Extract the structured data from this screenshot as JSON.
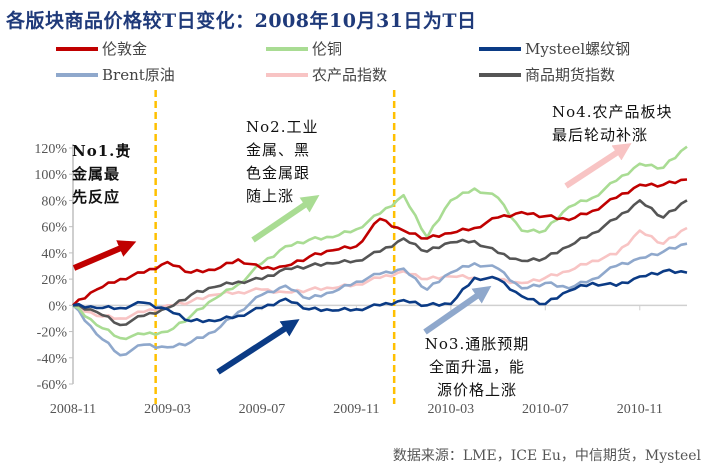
{
  "chart_data": {
    "type": "line",
    "title": "各版块商品价格较T日变化：2008年10月31日为T日",
    "xlabel": "",
    "ylabel": "",
    "x_unit": "months since 2008-11",
    "x": [
      0,
      1,
      2,
      3,
      4,
      5,
      6,
      7,
      8,
      9,
      10,
      11,
      12,
      13,
      14,
      15,
      16,
      17,
      18,
      19,
      20,
      21,
      22,
      23,
      24,
      25,
      26
    ],
    "x_ticks": [
      {
        "value": 0,
        "label": "2008-11"
      },
      {
        "value": 4,
        "label": "2009-03"
      },
      {
        "value": 8,
        "label": "2009-07"
      },
      {
        "value": 12,
        "label": "2009-11"
      },
      {
        "value": 16,
        "label": "2010-03"
      },
      {
        "value": 20,
        "label": "2010-07"
      },
      {
        "value": 24,
        "label": "2010-11"
      }
    ],
    "xlim": [
      0,
      26
    ],
    "ylim": [
      -60,
      120
    ],
    "y_ticks": [
      {
        "value": 120,
        "label": "120%"
      },
      {
        "value": 100,
        "label": "100%"
      },
      {
        "value": 80,
        "label": "80%"
      },
      {
        "value": 60,
        "label": "60%"
      },
      {
        "value": 40,
        "label": "40%"
      },
      {
        "value": 20,
        "label": "20%"
      },
      {
        "value": 0,
        "label": "0%"
      },
      {
        "value": -20,
        "label": "-20%"
      },
      {
        "value": -40,
        "label": "-40%"
      },
      {
        "value": -60,
        "label": "-60%"
      }
    ],
    "grid": false,
    "legend_position": "top",
    "series": [
      {
        "name": "伦敦金",
        "color": "#c00000",
        "values": [
          0,
          12,
          20,
          25,
          33,
          25,
          27,
          35,
          28,
          30,
          37,
          42,
          45,
          66,
          57,
          51,
          55,
          59,
          67,
          71,
          68,
          65,
          72,
          82,
          92,
          92,
          96
        ]
      },
      {
        "name": "伦铜",
        "color": "#a9dc93",
        "values": [
          0,
          -15,
          -25,
          -22,
          -20,
          -8,
          5,
          16,
          32,
          45,
          50,
          52,
          58,
          70,
          84,
          52,
          80,
          89,
          82,
          57,
          57,
          75,
          82,
          95,
          108,
          105,
          121
        ]
      },
      {
        "name": "Mysteel螺纹钢",
        "color": "#0b3b85",
        "values": [
          0,
          -2,
          -2,
          2,
          -3,
          -12,
          -12,
          -8,
          -2,
          5,
          -3,
          -4,
          -3,
          0,
          4,
          0,
          1,
          21,
          20,
          7,
          1,
          11,
          17,
          15,
          22,
          26,
          25
        ]
      },
      {
        "name": "Brent原油",
        "color": "#8fa8cc",
        "values": [
          0,
          -22,
          -38,
          -30,
          -32,
          -28,
          -20,
          -5,
          8,
          15,
          5,
          10,
          18,
          24,
          28,
          12,
          25,
          32,
          28,
          13,
          17,
          13,
          20,
          30,
          36,
          41,
          47
        ]
      },
      {
        "name": "农产品指数",
        "color": "#f8c4c4",
        "values": [
          0,
          -8,
          -10,
          -5,
          0,
          3,
          8,
          10,
          12,
          10,
          12,
          13,
          16,
          21,
          26,
          20,
          22,
          21,
          20,
          17,
          21,
          26,
          34,
          39,
          57,
          47,
          59
        ]
      },
      {
        "name": "商品期货指数",
        "color": "#555555",
        "values": [
          0,
          -5,
          -15,
          -8,
          -2,
          8,
          14,
          18,
          20,
          28,
          30,
          32,
          34,
          41,
          51,
          41,
          48,
          49,
          40,
          34,
          36,
          45,
          55,
          66,
          80,
          67,
          80
        ]
      }
    ],
    "markers": {
      "color": "#ffc000",
      "x": [
        3.5,
        13.6
      ]
    },
    "annotations": [
      {
        "id": "no1",
        "text_lines": [
          "No1.贵",
          "金属最",
          "先反应"
        ],
        "arrow_color": "#c00000"
      },
      {
        "id": "no2",
        "text_lines": [
          "No2.工业",
          "金属、黑",
          "色金属跟",
          "随上涨"
        ],
        "arrow_color": "#a9dc93"
      },
      {
        "id": "no3",
        "text_lines": [
          "No3.通胀预期",
          "全面升温，能",
          "源价格上涨"
        ],
        "arrow_color": "#8fa8cc"
      },
      {
        "id": "no4",
        "text_lines": [
          "No4.农产品板块",
          "最后轮动补涨"
        ],
        "arrow_color": "#f8c4c4"
      }
    ],
    "source": "数据来源：LME，ICE Eu，中信期货，Mysteel"
  }
}
